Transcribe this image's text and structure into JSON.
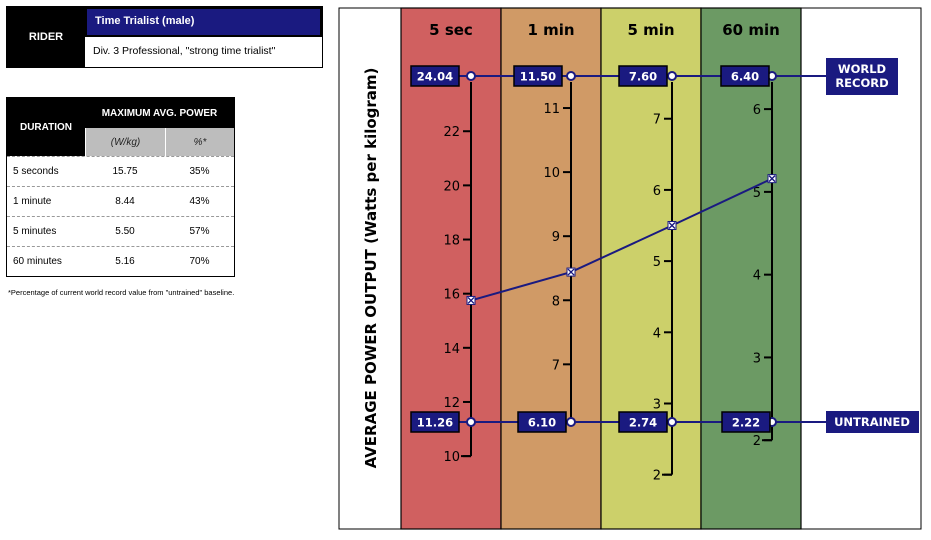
{
  "rider": {
    "label": "RIDER",
    "name": "Time Trialist (male)",
    "description": "Div. 3 Professional, \"strong time trialist\""
  },
  "table": {
    "duration_header": "DURATION",
    "max_header": "MAXIMUM AVG. POWER",
    "sub_wkg": "(W/kg)",
    "sub_pct": "%*",
    "rows": [
      {
        "duration": "5 seconds",
        "wkg": "15.75",
        "pct": "35%"
      },
      {
        "duration": "1 minute",
        "wkg": "8.44",
        "pct": "43%"
      },
      {
        "duration": "5 minutes",
        "wkg": "5.50",
        "pct": "57%"
      },
      {
        "duration": "60 minutes",
        "wkg": "5.16",
        "pct": "70%"
      }
    ],
    "footnote": "*Percentage of current world record value from \"untrained\" baseline."
  },
  "colors": {
    "navy": "#1a1a80",
    "col_5sec": "#d06060",
    "col_1min": "#d09a66",
    "col_5min": "#ccd06a",
    "col_60min": "#6c9a64"
  },
  "chart_data": {
    "type": "line",
    "ylabel": "AVERAGE POWER OUTPUT (Watts per kilogram)",
    "columns": [
      {
        "title": "5 sec",
        "world_record": "24.04",
        "untrained": "11.26",
        "rider": 15.75,
        "ticks": [
          "10",
          "12",
          "14",
          "16",
          "18",
          "20",
          "22"
        ],
        "tick_values": [
          10,
          12,
          14,
          16,
          18,
          20,
          22
        ],
        "ylim": [
          10,
          24.04
        ]
      },
      {
        "title": "1 min",
        "world_record": "11.50",
        "untrained": "6.10",
        "rider": 8.44,
        "ticks": [
          "7",
          "8",
          "9",
          "10",
          "11"
        ],
        "tick_values": [
          7,
          8,
          9,
          10,
          11
        ],
        "ylim": [
          6.1,
          11.5
        ]
      },
      {
        "title": "5 min",
        "world_record": "7.60",
        "untrained": "2.74",
        "rider": 5.5,
        "ticks": [
          "2",
          "3",
          "4",
          "5",
          "6",
          "7"
        ],
        "tick_values": [
          2,
          3,
          4,
          5,
          6,
          7
        ],
        "ylim": [
          2.0,
          7.6
        ]
      },
      {
        "title": "60 min",
        "world_record": "6.40",
        "untrained": "2.22",
        "rider": 5.16,
        "ticks": [
          "2",
          "3",
          "4",
          "5",
          "6"
        ],
        "tick_values": [
          2,
          3,
          4,
          5,
          6
        ],
        "ylim": [
          2.0,
          6.4
        ]
      }
    ],
    "world_record_label": [
      "WORLD",
      "RECORD"
    ],
    "untrained_label": "UNTRAINED"
  }
}
